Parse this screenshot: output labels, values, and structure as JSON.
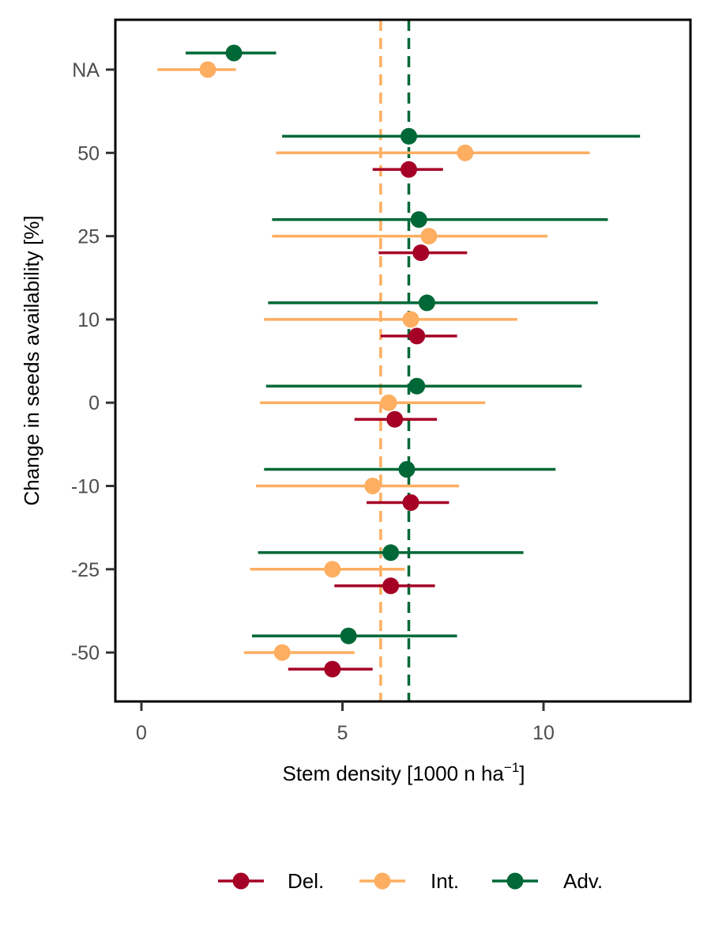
{
  "chart_data": {
    "type": "scatter",
    "subtype": "point-range",
    "xlabel": "Stem density [1000 n ha",
    "xlabel_superscript": "−1",
    "xlabel_suffix": "]",
    "ylabel": "Change in seeds availability [%]",
    "categories": [
      "NA",
      "50",
      "25",
      "10",
      "0",
      "-10",
      "-25",
      "-50"
    ],
    "xlim": [
      -0.6,
      13.7
    ],
    "xticks": [
      0,
      5,
      10
    ],
    "xtick_labels": [
      "0",
      "5",
      "10"
    ],
    "grid": false,
    "legend_position": "bottom",
    "series": [
      {
        "name": "Del.",
        "color": "#a50026",
        "points": [
          {
            "category": "50",
            "x": 6.65,
            "low": 5.75,
            "high": 7.5
          },
          {
            "category": "25",
            "x": 6.95,
            "low": 5.9,
            "high": 8.1
          },
          {
            "category": "10",
            "x": 6.85,
            "low": 5.95,
            "high": 7.85
          },
          {
            "category": "0",
            "x": 6.3,
            "low": 5.3,
            "high": 7.35
          },
          {
            "category": "-10",
            "x": 6.7,
            "low": 5.6,
            "high": 7.65
          },
          {
            "category": "-25",
            "x": 6.2,
            "low": 4.8,
            "high": 7.3
          },
          {
            "category": "-50",
            "x": 4.75,
            "low": 3.65,
            "high": 5.75
          }
        ]
      },
      {
        "name": "Int.",
        "color": "#fdae61",
        "points": [
          {
            "category": "NA",
            "x": 1.65,
            "low": 0.4,
            "high": 2.35
          },
          {
            "category": "50",
            "x": 8.05,
            "low": 3.35,
            "high": 11.15
          },
          {
            "category": "25",
            "x": 7.15,
            "low": 3.25,
            "high": 10.1
          },
          {
            "category": "10",
            "x": 6.7,
            "low": 3.05,
            "high": 9.35
          },
          {
            "category": "0",
            "x": 6.15,
            "low": 2.95,
            "high": 8.55
          },
          {
            "category": "-10",
            "x": 5.75,
            "low": 2.85,
            "high": 7.9
          },
          {
            "category": "-25",
            "x": 4.75,
            "low": 2.7,
            "high": 6.55
          },
          {
            "category": "-50",
            "x": 3.5,
            "low": 2.55,
            "high": 5.3
          }
        ]
      },
      {
        "name": "Adv.",
        "color": "#006837",
        "points": [
          {
            "category": "NA",
            "x": 2.3,
            "low": 1.1,
            "high": 3.35
          },
          {
            "category": "50",
            "x": 6.65,
            "low": 3.5,
            "high": 12.4
          },
          {
            "category": "25",
            "x": 6.9,
            "low": 3.25,
            "high": 11.6
          },
          {
            "category": "10",
            "x": 7.1,
            "low": 3.15,
            "high": 11.35
          },
          {
            "category": "0",
            "x": 6.85,
            "low": 3.1,
            "high": 10.95
          },
          {
            "category": "-10",
            "x": 6.6,
            "low": 3.05,
            "high": 10.3
          },
          {
            "category": "-25",
            "x": 6.2,
            "low": 2.9,
            "high": 9.5
          },
          {
            "category": "-50",
            "x": 5.15,
            "low": 2.75,
            "high": 7.85
          }
        ]
      }
    ],
    "reference_lines": [
      {
        "series": "Int.",
        "x": 5.95,
        "color": "#fdae61",
        "style": "dashed"
      },
      {
        "series": "Adv.",
        "x": 6.65,
        "color": "#006837",
        "style": "dashed"
      }
    ]
  }
}
